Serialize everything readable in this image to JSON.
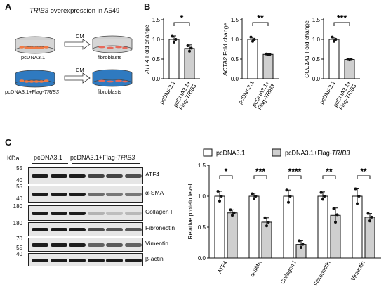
{
  "figure": {
    "panels": [
      "A",
      "B",
      "C"
    ]
  },
  "panel_a": {
    "title_gene": "TRIB3",
    "title_rest": " overexpression in A549",
    "cm_label": "CM",
    "row1_left": "pcDNA3.1",
    "row1_right": "fibroblasts",
    "row2_left_prefix": "pcDNA3.1+Flag-",
    "row2_left_gene": "TRIB3",
    "row2_right": "fibroblasts"
  },
  "panel_c_blot": {
    "kda_header": "KDa",
    "lane_group_1": "pcDNA3.1",
    "lane_group_2_prefix": "pcDNA3.1+Flag-",
    "lane_group_2_gene": "TRIB3",
    "rows": [
      {
        "marker_top": "55",
        "marker_bottom": "40",
        "label": "ATF4"
      },
      {
        "marker_top": "55",
        "marker_bottom": "40",
        "label": "α-SMA"
      },
      {
        "marker_top": "180",
        "marker_bottom": "",
        "label": "Collagen Ⅰ"
      },
      {
        "marker_top": "180",
        "marker_bottom": "",
        "label": "Fibronectin"
      },
      {
        "marker_top": "70",
        "marker_bottom": "55",
        "label": "Vimentin"
      },
      {
        "marker_top": "40",
        "marker_bottom": "",
        "label": "β-actin"
      }
    ]
  },
  "chart_data": [
    {
      "type": "bar",
      "panel": "B",
      "ylabel_gene": "ATF4",
      "ylabel": " Fold change",
      "categories": [
        "pcDNA3.1",
        "pcDNA3.1+ Flag-TRIB3"
      ],
      "values": [
        1.0,
        0.77
      ],
      "errors": [
        0.09,
        0.09
      ],
      "points": [
        [
          1.08,
          0.93,
          1.0
        ],
        [
          0.84,
          0.7,
          0.78
        ]
      ],
      "ylim": [
        0,
        1.5
      ],
      "yticks": [
        "0.0",
        "0.5",
        "1.0",
        "1.5"
      ],
      "significance": "*"
    },
    {
      "type": "bar",
      "panel": "B",
      "ylabel_gene": "ACTA2",
      "ylabel": " Fold change",
      "categories": [
        "pcDNA3.1",
        "pcDNA3.1+ Flag-TRIB3"
      ],
      "values": [
        1.0,
        0.62
      ],
      "errors": [
        0.06,
        0.02
      ],
      "points": [
        [
          1.06,
          0.95,
          1.0
        ],
        [
          0.63,
          0.61,
          0.62
        ]
      ],
      "ylim": [
        0,
        1.5
      ],
      "yticks": [
        "0.0",
        "0.5",
        "1.0",
        "1.5"
      ],
      "significance": "**"
    },
    {
      "type": "bar",
      "panel": "B",
      "ylabel_gene": "COL1A1",
      "ylabel": " Fold change",
      "categories": [
        "pcDNA3.1",
        "pcDNA3.1+ Flag-TRIB3"
      ],
      "values": [
        1.0,
        0.49
      ],
      "errors": [
        0.06,
        0.01
      ],
      "points": [
        [
          1.06,
          0.95,
          1.0
        ],
        [
          0.49,
          0.48,
          0.49
        ]
      ],
      "ylim": [
        0,
        1.5
      ],
      "yticks": [
        "0.0",
        "0.5",
        "1.0",
        "1.5"
      ],
      "significance": "***"
    },
    {
      "type": "bar",
      "panel": "C",
      "ylabel": "Relative protein level",
      "categories": [
        "ATF4",
        "α-SMA",
        "Collagen Ⅰ",
        "Fibronectin",
        "Vimentin"
      ],
      "series": [
        {
          "name": "pcDNA3.1",
          "values": [
            1.0,
            1.0,
            1.0,
            1.0,
            1.0
          ],
          "errors": [
            0.08,
            0.05,
            0.1,
            0.07,
            0.12
          ],
          "points": [
            [
              1.08,
              0.92,
              1.0
            ],
            [
              1.04,
              0.96,
              1.0
            ],
            [
              1.1,
              0.9,
              1.0
            ],
            [
              1.06,
              0.95,
              1.0
            ],
            [
              1.12,
              0.88,
              1.0
            ]
          ]
        },
        {
          "name": "pcDNA3.1+Flag-TRIB3",
          "values": [
            0.73,
            0.58,
            0.22,
            0.69,
            0.66
          ],
          "errors": [
            0.05,
            0.07,
            0.06,
            0.12,
            0.06
          ],
          "points": [
            [
              0.78,
              0.69,
              0.73
            ],
            [
              0.65,
              0.52,
              0.58
            ],
            [
              0.28,
              0.17,
              0.22
            ],
            [
              0.8,
              0.58,
              0.7
            ],
            [
              0.72,
              0.6,
              0.66
            ]
          ]
        }
      ],
      "ylim": [
        0,
        1.5
      ],
      "yticks": [
        "0.0",
        "0.5",
        "1.0",
        "1.5"
      ],
      "significance": [
        "*",
        "***",
        "****",
        "**",
        "**"
      ],
      "legend": "top"
    }
  ]
}
